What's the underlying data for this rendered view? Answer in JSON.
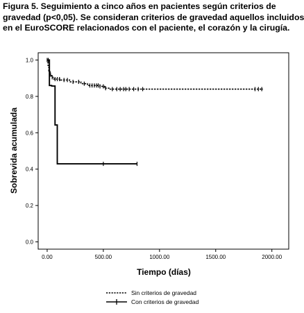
{
  "caption": {
    "line1": "Figura 5. Seguimiento a cinco años en pacientes según criterios de",
    "line2": "gravedad (p<0,05). Se consideran criterios de gravedad aquellos incluidos",
    "line3": "en el EuroSCORE relacionados con el paciente, el corazón y la cirugía."
  },
  "chart_data": {
    "type": "line",
    "subtype": "kaplan-meier",
    "xlabel": "Tiempo (días)",
    "ylabel": "Sobrevida acumulada",
    "xlim": [
      -80,
      2150
    ],
    "ylim": [
      -0.04,
      1.04
    ],
    "xticks": [
      0,
      500,
      1000,
      1500,
      2000
    ],
    "xtick_labels": [
      "0.00",
      "500.00",
      "1000.00",
      "1500.00",
      "2000.00"
    ],
    "yticks": [
      0.0,
      0.2,
      0.4,
      0.6,
      0.8,
      1.0
    ],
    "ytick_labels": [
      "0.0",
      "0.2",
      "0.4",
      "0.6",
      "0.8",
      "1.0"
    ],
    "grid": false,
    "legend_position": "bottom",
    "series": [
      {
        "name": "Sin criterios de gravedad",
        "style": "dashed",
        "steps": [
          [
            0,
            1.0
          ],
          [
            8,
            0.97
          ],
          [
            15,
            0.94
          ],
          [
            25,
            0.92
          ],
          [
            40,
            0.905
          ],
          [
            60,
            0.895
          ],
          [
            120,
            0.89
          ],
          [
            200,
            0.88
          ],
          [
            300,
            0.87
          ],
          [
            360,
            0.86
          ],
          [
            470,
            0.855
          ],
          [
            510,
            0.845
          ],
          [
            560,
            0.84
          ],
          [
            1920,
            0.84
          ]
        ],
        "censored": [
          0,
          20,
          30,
          45,
          70,
          90,
          110,
          150,
          180,
          230,
          280,
          330,
          380,
          400,
          420,
          440,
          455,
          470,
          500,
          520,
          580,
          620,
          650,
          680,
          700,
          730,
          770,
          810,
          850,
          1850,
          1880,
          1910
        ]
      },
      {
        "name": "Con criterios de gravedad",
        "style": "solid",
        "steps": [
          [
            0,
            1.0
          ],
          [
            20,
            0.86
          ],
          [
            40,
            0.857
          ],
          [
            70,
            0.643
          ],
          [
            90,
            0.429
          ],
          [
            800,
            0.429
          ]
        ],
        "censored": [
          10,
          500,
          800
        ]
      }
    ]
  }
}
